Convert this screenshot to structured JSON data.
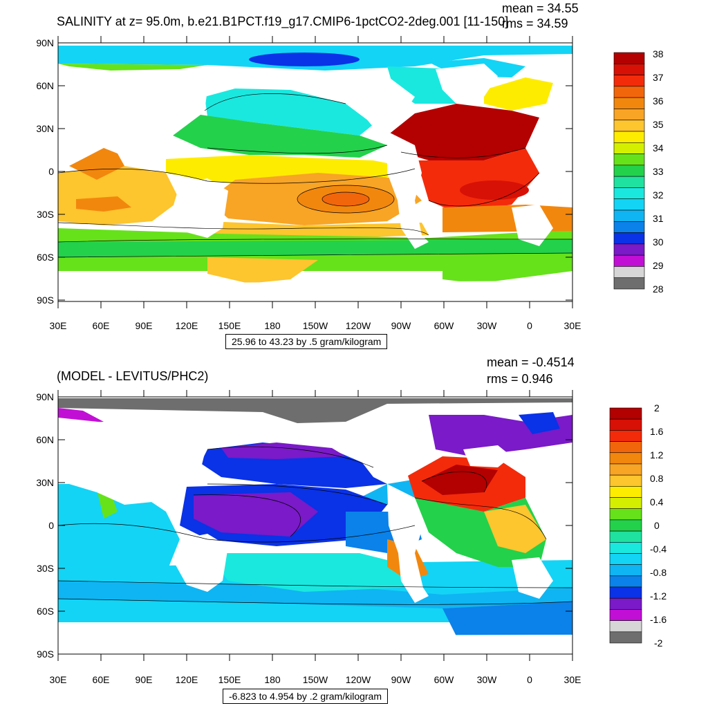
{
  "top_panel": {
    "title": "SALINITY at z=  95.0m, b.e21.B1PCT.f19_g17.CMIP6-1pctCO2-2deg.001 [11-150]",
    "mean_text": "mean = 34.55",
    "rms_text": "rms = 34.59",
    "range_text": "25.96 to 43.23 by .5 gram/kilogram",
    "lat_labels": [
      "90N",
      "60N",
      "30N",
      "0",
      "30S",
      "60S",
      "90S"
    ],
    "lon_labels": [
      "30E",
      "60E",
      "90E",
      "120E",
      "150E",
      "180",
      "150W",
      "120W",
      "90W",
      "60W",
      "30W",
      "0",
      "30E"
    ],
    "colorbar_labels": [
      "38",
      "37",
      "36",
      "35",
      "34",
      "33",
      "32",
      "31",
      "30",
      "29",
      "28"
    ],
    "colorbar_colors": [
      "#b30000",
      "#d71106",
      "#f32b0b",
      "#f2660b",
      "#f2870d",
      "#f8a425",
      "#fdc52e",
      "#feec00",
      "#d4f000",
      "#66e21b",
      "#23d14b",
      "#20e2a0",
      "#1ae8df",
      "#13d4f5",
      "#0fb5f2",
      "#0a82ea",
      "#0a32e6",
      "#7a1ac8",
      "#c20fd6",
      "#d6d6d6",
      "#6e6e6e"
    ]
  },
  "bottom_panel": {
    "title": "(MODEL - LEVITUS/PHC2)",
    "mean_text": "mean = -0.4514",
    "rms_text": "rms = 0.946",
    "range_text": "-6.823 to 4.954 by .2 gram/kilogram",
    "lat_labels": [
      "90N",
      "60N",
      "30N",
      "0",
      "30S",
      "60S",
      "90S"
    ],
    "lon_labels": [
      "30E",
      "60E",
      "90E",
      "120E",
      "150E",
      "180",
      "150W",
      "120W",
      "90W",
      "60W",
      "30W",
      "0",
      "30E"
    ],
    "colorbar_labels": [
      "2",
      "1.6",
      "1.2",
      "0.8",
      "0.4",
      "0",
      "-0.4",
      "-0.8",
      "-1.2",
      "-1.6",
      "-2"
    ],
    "colorbar_colors": [
      "#b30000",
      "#d71106",
      "#f32b0b",
      "#f2660b",
      "#f2870d",
      "#f8a425",
      "#fdc52e",
      "#feec00",
      "#d4f000",
      "#66e21b",
      "#23d14b",
      "#20e2a0",
      "#1ae8df",
      "#13d4f5",
      "#0fb5f2",
      "#0a82ea",
      "#0a32e6",
      "#7a1ac8",
      "#c20fd6",
      "#d6d6d6",
      "#6e6e6e"
    ]
  }
}
